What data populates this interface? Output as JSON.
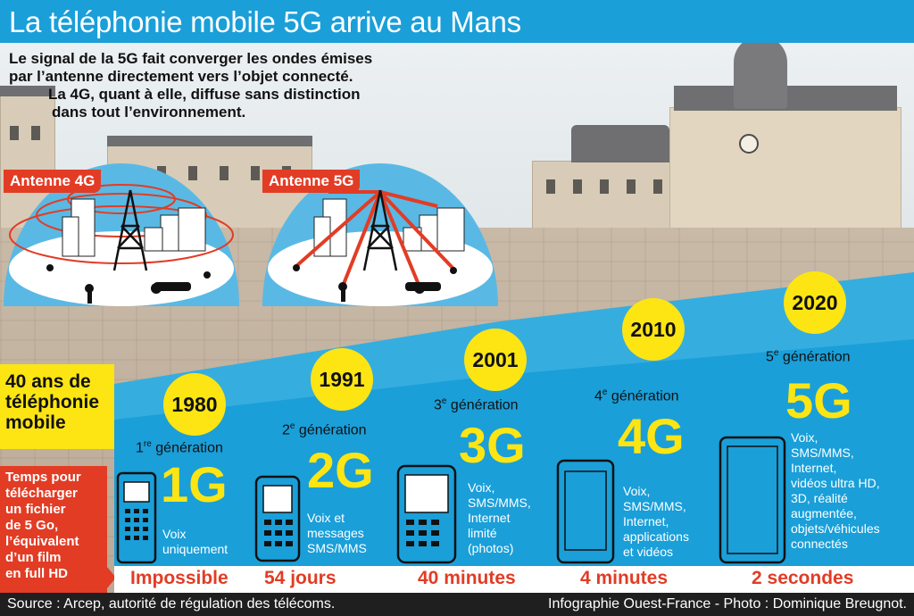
{
  "title": "La téléphonie mobile 5G arrive au Mans",
  "intro": {
    "line1": "Le signal de la 5G fait converger les ondes émises",
    "line2": "par l’antenne directement vers l’objet connecté.",
    "line3": "La 4G, quant à elle, diffuse sans distinction",
    "line4": "dans tout l’environnement."
  },
  "antennas": {
    "a4g": "Antenne 4G",
    "a5g": "Antenne 5G"
  },
  "side": {
    "title_line1": "40 ans de",
    "title_line2": "téléphonie",
    "title_line3": "mobile",
    "download_line1": "Temps pour",
    "download_line2": "télécharger",
    "download_line3": "un fichier",
    "download_line4": "de 5 Go,",
    "download_line5": "l’équivalent",
    "download_line6": "d’un film",
    "download_line7": "en full HD"
  },
  "generations": [
    {
      "year": "1980",
      "ordinal": "1",
      "ordinal_suffix": "re",
      "label": "génération",
      "name": "1G",
      "desc": [
        "Voix",
        "uniquement"
      ],
      "time": "Impossible"
    },
    {
      "year": "1991",
      "ordinal": "2",
      "ordinal_suffix": "e",
      "label": "génération",
      "name": "2G",
      "desc": [
        "Voix et",
        "messages",
        "SMS/MMS"
      ],
      "time": "54 jours"
    },
    {
      "year": "2001",
      "ordinal": "3",
      "ordinal_suffix": "e",
      "label": "génération",
      "name": "3G",
      "desc": [
        "Voix,",
        "SMS/MMS,",
        "Internet",
        "limité",
        "(photos)"
      ],
      "time": "40 minutes"
    },
    {
      "year": "2010",
      "ordinal": "4",
      "ordinal_suffix": "e",
      "label": "génération",
      "name": "4G",
      "desc": [
        "Voix,",
        "SMS/MMS,",
        "Internet,",
        "applications",
        "et vidéos"
      ],
      "time": "4 minutes"
    },
    {
      "year": "2020",
      "ordinal": "5",
      "ordinal_suffix": "e",
      "label": "génération",
      "name": "5G",
      "desc": [
        "Voix,",
        "SMS/MMS,",
        "Internet,",
        "vidéos ultra HD,",
        "3D, réalité",
        "augmentée,",
        "objets/véhicules",
        "connectés"
      ],
      "time": "2 secondes"
    }
  ],
  "source": {
    "left": "Source : Arcep, autorité de régulation des télécoms.",
    "right": "Infographie Ouest-France - Photo : Dominique Breugnot."
  },
  "colors": {
    "blue": "#1a9fd9",
    "yellow": "#fde513",
    "red": "#e23c25"
  }
}
